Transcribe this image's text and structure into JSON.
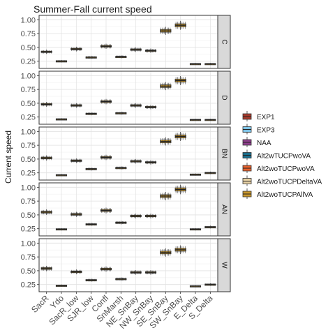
{
  "chart_data": {
    "type": "boxplot",
    "title": "Summer-Fall current speed",
    "xlabel": "",
    "ylabel": "Current speed",
    "ylim": [
      0.12,
      1.08
    ],
    "yticks": [
      0.25,
      0.5,
      0.75,
      1.0
    ],
    "ytick_labels": [
      "0.25",
      "0.50",
      "0.75",
      "1.00"
    ],
    "grid": true,
    "legend_position": "right",
    "categories": [
      "SacR",
      "Ydo",
      "SacR_low",
      "SJR_low",
      "Confl",
      "SnMarsh",
      "NE_SnBay",
      "NW_SnBay",
      "SE_SnBay",
      "SW_SnBay",
      "E_Delta",
      "S_Delta"
    ],
    "series": [
      {
        "name": "EXP1",
        "color": "#A63A2C"
      },
      {
        "name": "EXP3",
        "color": "#7EC3E6"
      },
      {
        "name": "NAA",
        "color": "#8E3F8C"
      },
      {
        "name": "Alt2wTUCPwoVA",
        "color": "#1B6E8C"
      },
      {
        "name": "Alt2woTUCPwoVA",
        "color": "#E8612C"
      },
      {
        "name": "Alt2woTUCPDeltaVA",
        "color": "#E9D3A6"
      },
      {
        "name": "Alt2woTUCPAllVA",
        "color": "#C8962A"
      }
    ],
    "panels": [
      {
        "label": "C",
        "medians": [
          0.42,
          0.25,
          0.47,
          0.32,
          0.52,
          0.33,
          0.46,
          0.44,
          0.8,
          0.9,
          0.2,
          0.2
        ]
      },
      {
        "label": "D",
        "medians": [
          0.48,
          0.21,
          0.46,
          0.31,
          0.53,
          0.32,
          0.46,
          0.43,
          0.81,
          0.91,
          0.2,
          0.2
        ]
      },
      {
        "label": "BN",
        "medians": [
          0.52,
          0.21,
          0.47,
          0.32,
          0.53,
          0.34,
          0.46,
          0.44,
          0.82,
          0.91,
          0.22,
          0.25
        ]
      },
      {
        "label": "AN",
        "medians": [
          0.55,
          0.24,
          0.51,
          0.33,
          0.58,
          0.36,
          0.48,
          0.48,
          0.84,
          0.96,
          0.24,
          0.28
        ]
      },
      {
        "label": "W",
        "medians": [
          0.54,
          0.23,
          0.48,
          0.33,
          0.53,
          0.35,
          0.47,
          0.47,
          0.83,
          0.88,
          0.22,
          0.25
        ]
      }
    ]
  }
}
